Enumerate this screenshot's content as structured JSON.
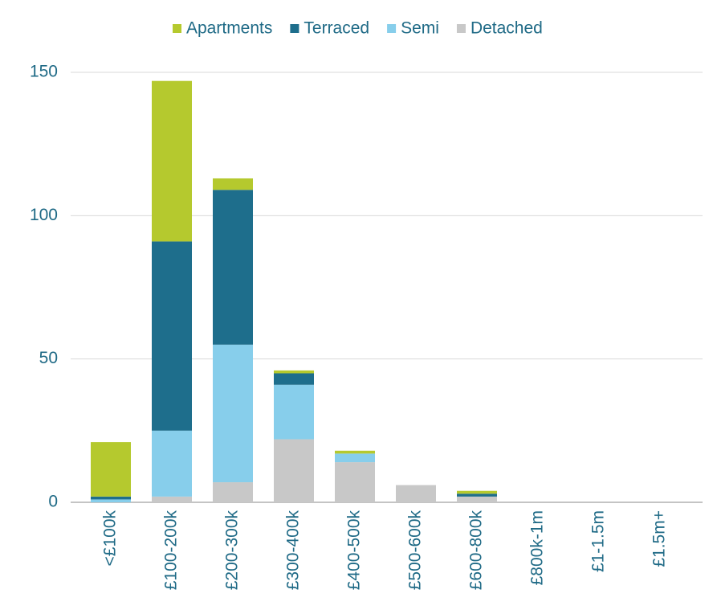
{
  "chart_data": {
    "type": "stacked_bar",
    "categories": [
      "<£100k",
      "£100-200k",
      "£200-300k",
      "£300-400k",
      "£400-500k",
      "£500-600k",
      "£600-800k",
      "£800k-1m",
      "£1-1.5m",
      "£1.5m+"
    ],
    "series": [
      {
        "name": "Detached",
        "color": "#c8c8c8",
        "values": [
          0,
          2,
          7,
          22,
          14,
          6,
          2,
          0,
          0,
          0
        ]
      },
      {
        "name": "Semi",
        "color": "#87ceeb",
        "values": [
          1,
          23,
          48,
          19,
          3,
          0,
          0,
          0,
          0,
          0
        ]
      },
      {
        "name": "Terraced",
        "color": "#1e6e8c",
        "values": [
          1,
          66,
          54,
          4,
          0,
          0,
          1,
          0,
          0,
          0
        ]
      },
      {
        "name": "Apartments",
        "color": "#b5c92e",
        "values": [
          19,
          56,
          4,
          1,
          1,
          0,
          1,
          0,
          0,
          0
        ]
      }
    ],
    "legend_order": [
      "Apartments",
      "Terraced",
      "Semi",
      "Detached"
    ],
    "ylim": [
      0,
      150
    ],
    "yticks": [
      0,
      50,
      100,
      150
    ],
    "grid": true,
    "legend": "top"
  }
}
